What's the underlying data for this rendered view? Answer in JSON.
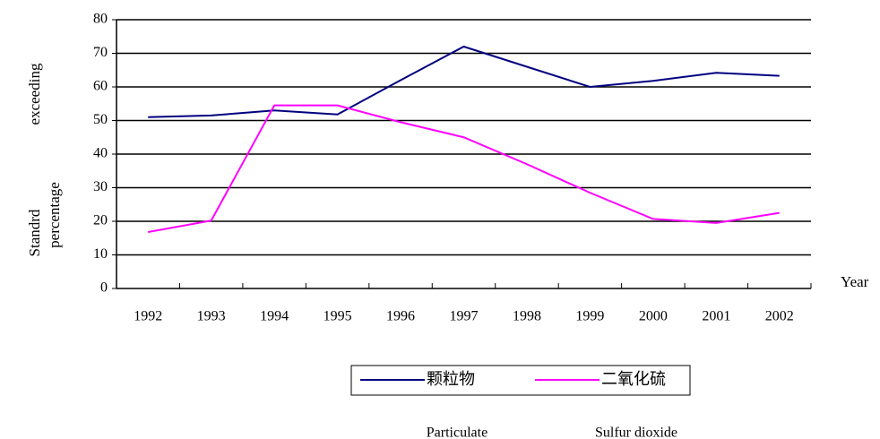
{
  "chart_data": {
    "type": "line",
    "y_label": [
      "Standrd",
      "exceeding",
      "percentage"
    ],
    "x_label": "Year",
    "categories": [
      "1992",
      "1993",
      "1994",
      "1995",
      "1996",
      "1997",
      "1998",
      "1999",
      "2000",
      "2001",
      "2002"
    ],
    "series": [
      {
        "name": "颗粒物",
        "color": "#000080",
        "values": [
          51,
          51.5,
          53,
          51.8,
          62,
          72,
          66,
          60,
          61.8,
          64.2,
          63.3
        ]
      },
      {
        "name": "二氧化硫",
        "color": "#ff00ff",
        "values": [
          16.8,
          20.2,
          54.5,
          54.5,
          49.5,
          45,
          37,
          28.5,
          20.7,
          19.5,
          22.5
        ]
      }
    ],
    "annotations": [
      "Particulate",
      "Sulfur dioxide"
    ],
    "ylim": [
      0,
      80
    ],
    "yticks": [
      0,
      10,
      20,
      30,
      40,
      50,
      60,
      70,
      80
    ],
    "grid": true,
    "legend": "bottom"
  }
}
